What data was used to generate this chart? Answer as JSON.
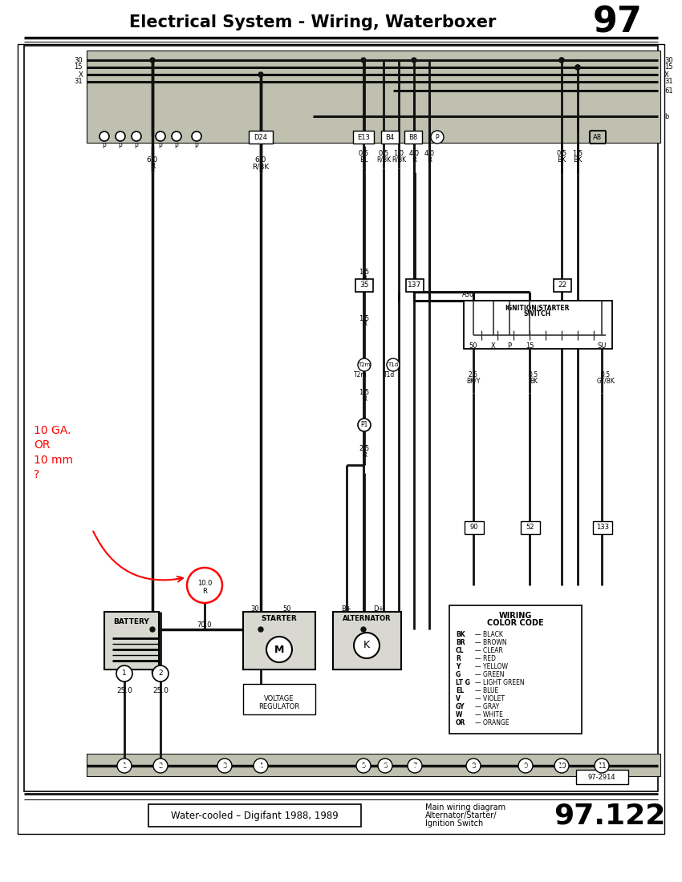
{
  "title": "Electrical System - Wiring, Waterboxer",
  "title_num": "97",
  "page_num": "97.122",
  "subtitle_box": "Water-cooled – Digifant 1988, 1989",
  "subtitle_right1": "Main wiring diagram",
  "subtitle_right2": "Alternator/Starter/",
  "subtitle_right3": "Ignition Switch",
  "diagram_id": "97-2914",
  "color_codes": [
    [
      "BK",
      "BLACK"
    ],
    [
      "BR",
      "BROWN"
    ],
    [
      "CL",
      "CLEAR"
    ],
    [
      "R",
      "RED"
    ],
    [
      "Y",
      "YELLOW"
    ],
    [
      "G",
      "GREEN"
    ],
    [
      "LT G",
      "LIGHT GREEN"
    ],
    [
      "EL",
      "BLUE"
    ],
    [
      "V",
      "VIOLET"
    ],
    [
      "GY",
      "GRAY"
    ],
    [
      "W",
      "WHITE"
    ],
    [
      "OR",
      "ORANGE"
    ]
  ],
  "bottom_labels": [
    "1",
    "2",
    "3",
    "4",
    "5",
    "6",
    "7",
    "8",
    "9",
    "10",
    "11"
  ],
  "annotation_red": "10 GA.\nOR\n10 mm\n?"
}
